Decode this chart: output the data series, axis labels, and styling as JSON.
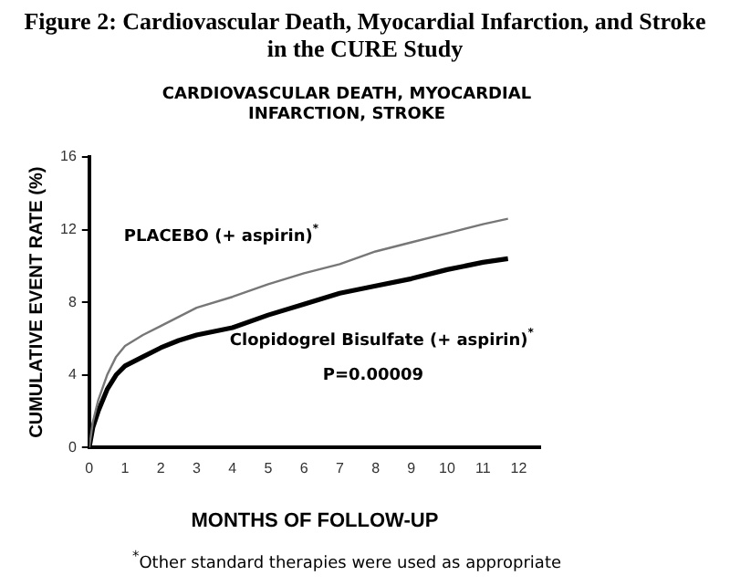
{
  "chart_data": {
    "type": "line",
    "title": "Figure 2: Cardiovascular Death, Myocardial Infarction, and Stroke in the CURE Study",
    "subtitle": "CARDIOVASCULAR DEATH, MYOCARDIAL INFARCTION, STROKE",
    "xlabel": "MONTHS OF FOLLOW-UP",
    "ylabel": "CUMULATIVE EVENT RATE (%)",
    "x": [
      0,
      0.1,
      0.25,
      0.5,
      0.75,
      1,
      1.5,
      2,
      2.5,
      3,
      4,
      5,
      6,
      7,
      8,
      9,
      10,
      11,
      11.7
    ],
    "series": [
      {
        "name": "PLACEBO (+ aspirin)$^{*}$",
        "color": "#777777",
        "values": [
          0,
          1.4,
          2.6,
          4.0,
          5.0,
          5.6,
          6.2,
          6.7,
          7.2,
          7.7,
          8.3,
          9.0,
          9.6,
          10.1,
          10.8,
          11.3,
          11.8,
          12.3,
          12.6
        ]
      },
      {
        "name": "Clopidogrel Bisulfate (+ aspirin)$^{*}$",
        "color": "#000000",
        "values": [
          0,
          1.1,
          2.0,
          3.2,
          4.0,
          4.5,
          5.0,
          5.5,
          5.9,
          6.2,
          6.6,
          7.3,
          7.9,
          8.5,
          8.9,
          9.3,
          9.8,
          10.2,
          10.4
        ]
      }
    ],
    "xlim": [
      0,
      12.6
    ],
    "xticks": [
      0,
      1,
      2,
      3,
      4,
      5,
      6,
      7,
      8,
      9,
      10,
      11,
      12
    ],
    "ylim": [
      0,
      16
    ],
    "yticks": [
      0,
      4,
      8,
      12,
      16
    ],
    "grid": false,
    "legend": false,
    "marker": "none",
    "line_style": "solid",
    "annotations": [
      "P=0.00009",
      "$^{*}$Other standard therapies were used as appropriate"
    ]
  }
}
